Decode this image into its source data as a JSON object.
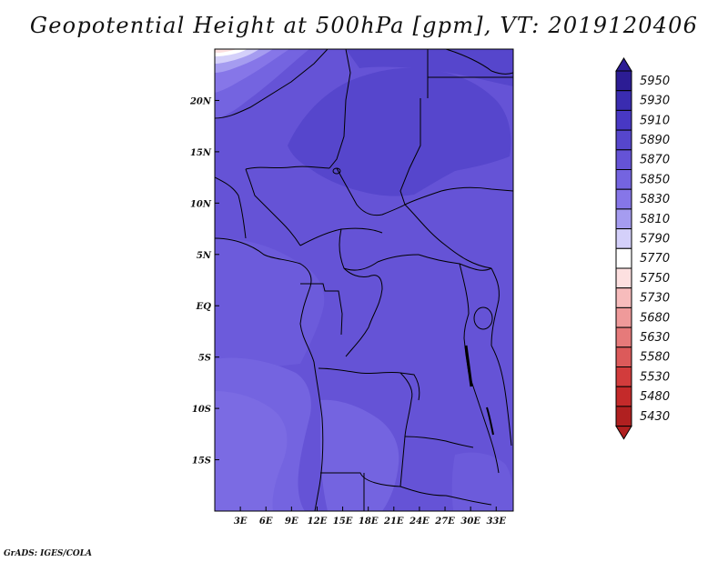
{
  "title": "Geopotential Height at 500hPa [gpm], VT: 2019120406",
  "credit": "GrADS: IGES/COLA",
  "map": {
    "lat_labels": [
      "20N",
      "15N",
      "10N",
      "5N",
      "EQ",
      "5S",
      "10S",
      "15S"
    ],
    "lat_values": [
      20,
      15,
      10,
      5,
      0,
      -5,
      -10,
      -15
    ],
    "lon_labels": [
      "3E",
      "6E",
      "9E",
      "12E",
      "15E",
      "18E",
      "21E",
      "24E",
      "27E",
      "30E",
      "33E"
    ],
    "lon_values": [
      3,
      6,
      9,
      12,
      15,
      18,
      21,
      24,
      27,
      30,
      33
    ],
    "lon_range": [
      0,
      35
    ],
    "lat_range": [
      -20,
      25
    ]
  },
  "colorbar": {
    "levels": [
      "5950",
      "5930",
      "5910",
      "5890",
      "5870",
      "5850",
      "5830",
      "5810",
      "5790",
      "5770",
      "5750",
      "5730",
      "5680",
      "5630",
      "5580",
      "5530",
      "5480",
      "5430"
    ],
    "colors": [
      "#2c1c94",
      "#3a2cb0",
      "#4838c4",
      "#5646cc",
      "#6553d6",
      "#7464e0",
      "#8676e8",
      "#a59cf0",
      "#d4d0fa",
      "#ffffff",
      "#fde0e0",
      "#f7bcbc",
      "#ef9a9a",
      "#e67a7a",
      "#dc5a5a",
      "#d23c3c",
      "#c42a2a",
      "#b02020"
    ]
  }
}
